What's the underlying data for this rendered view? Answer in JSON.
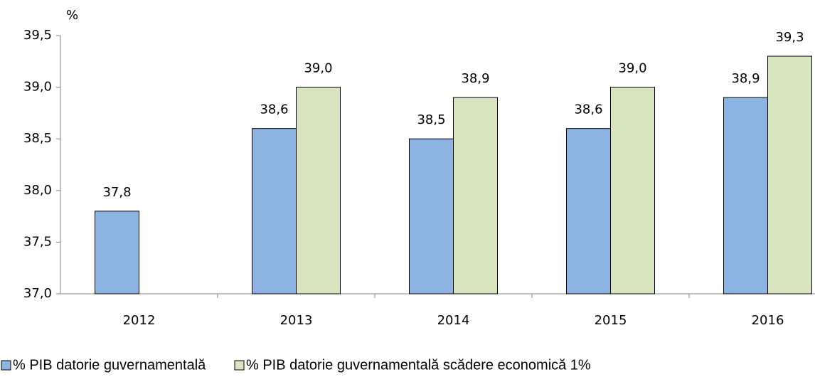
{
  "chart_data": {
    "type": "bar",
    "y_axis_label": "%",
    "categories": [
      "2012",
      "2013",
      "2014",
      "2015",
      "2016"
    ],
    "series": [
      {
        "name": "% PIB datorie guvernamentală",
        "color": "#8db3e2",
        "values": [
          37.8,
          38.6,
          38.5,
          38.6,
          38.9
        ],
        "value_labels": [
          "37,8",
          "38,6",
          "38,5",
          "38,6",
          "38,9"
        ]
      },
      {
        "name": "% PIB datorie guvernamentală scădere economică 1%",
        "color": "#d7e4bd",
        "values": [
          null,
          39.0,
          38.9,
          39.0,
          39.3
        ],
        "value_labels": [
          null,
          "39,0",
          "38,9",
          "39,0",
          "39,3"
        ]
      }
    ],
    "ylim": [
      37.0,
      39.5
    ],
    "yticks": [
      {
        "value": 37.0,
        "label": "37,0"
      },
      {
        "value": 37.5,
        "label": "37,5"
      },
      {
        "value": 38.0,
        "label": "38,0"
      },
      {
        "value": 38.5,
        "label": "38,5"
      },
      {
        "value": 39.0,
        "label": "39,0"
      },
      {
        "value": 39.5,
        "label": "39,5"
      }
    ],
    "grid": false,
    "legend": "bottom"
  }
}
